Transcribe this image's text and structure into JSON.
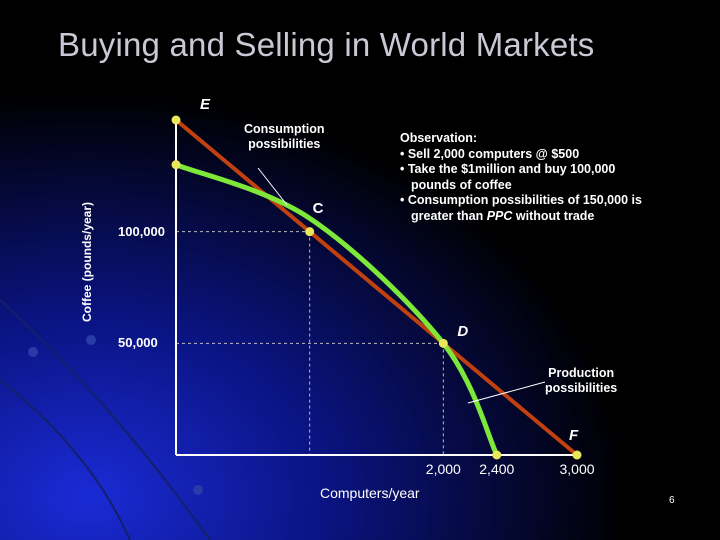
{
  "slide": {
    "title": "Buying and Selling in World Markets",
    "page_number": "6"
  },
  "observation": {
    "heading": "Observation:",
    "lines": [
      "• Sell 2,000 computers @ $500",
      "• Take the $1million and buy 100,000",
      "pounds of coffee",
      "• Consumption possibilities of 150,000 is",
      "greater than "
    ],
    "ppc_italic": "PPC",
    "tail": " without trade"
  },
  "annotations": {
    "consumption": [
      "Consumption",
      "possibilities"
    ],
    "production": [
      "Production",
      "possibilities"
    ]
  },
  "chart_data": {
    "type": "line",
    "xlabel": "Computers/year",
    "ylabel": "Coffee (pounds/year)",
    "x_ticks": [
      {
        "value": 2000,
        "label": "2,000"
      },
      {
        "value": 2400,
        "label": "2,400"
      },
      {
        "value": 3000,
        "label": "3,000"
      }
    ],
    "y_ticks": [
      {
        "value": 100000,
        "label": "100,000"
      },
      {
        "value": 50000,
        "label": "50,000"
      }
    ],
    "xlim": [
      0,
      3000
    ],
    "ylim": [
      0,
      150000
    ],
    "series": [
      {
        "color": "#c0400f",
        "points": [
          [
            0,
            150000
          ],
          [
            3000,
            0
          ]
        ]
      },
      {
        "color": "#7ee83a",
        "points": [
          [
            0,
            130000
          ],
          [
            1000,
            106000
          ],
          [
            2000,
            50000
          ],
          [
            2400,
            0
          ]
        ]
      }
    ],
    "points": [
      {
        "label": "E",
        "x": 0,
        "y": 150000,
        "italic": true
      },
      {
        "label": "",
        "x": 0,
        "y": 130000
      },
      {
        "label": "C",
        "x": 1000,
        "y": 100000,
        "italic": false
      },
      {
        "label": "D",
        "x": 2000,
        "y": 50000,
        "italic": true
      },
      {
        "label": "",
        "x": 2400,
        "y": 0
      },
      {
        "label": "F",
        "x": 3000,
        "y": 0,
        "italic": true
      }
    ],
    "guides": [
      {
        "from": [
          0,
          100000
        ],
        "to": [
          1000,
          100000
        ]
      },
      {
        "from": [
          1000,
          100000
        ],
        "to": [
          1000,
          0
        ]
      },
      {
        "from": [
          0,
          50000
        ],
        "to": [
          2000,
          50000
        ]
      },
      {
        "from": [
          2000,
          50000
        ],
        "to": [
          2000,
          0
        ]
      }
    ],
    "colors": {
      "trade_line": "#c0400f",
      "ppc": "#7ee83a",
      "marker": "#e8e85a",
      "axis": "#ffffff"
    }
  }
}
